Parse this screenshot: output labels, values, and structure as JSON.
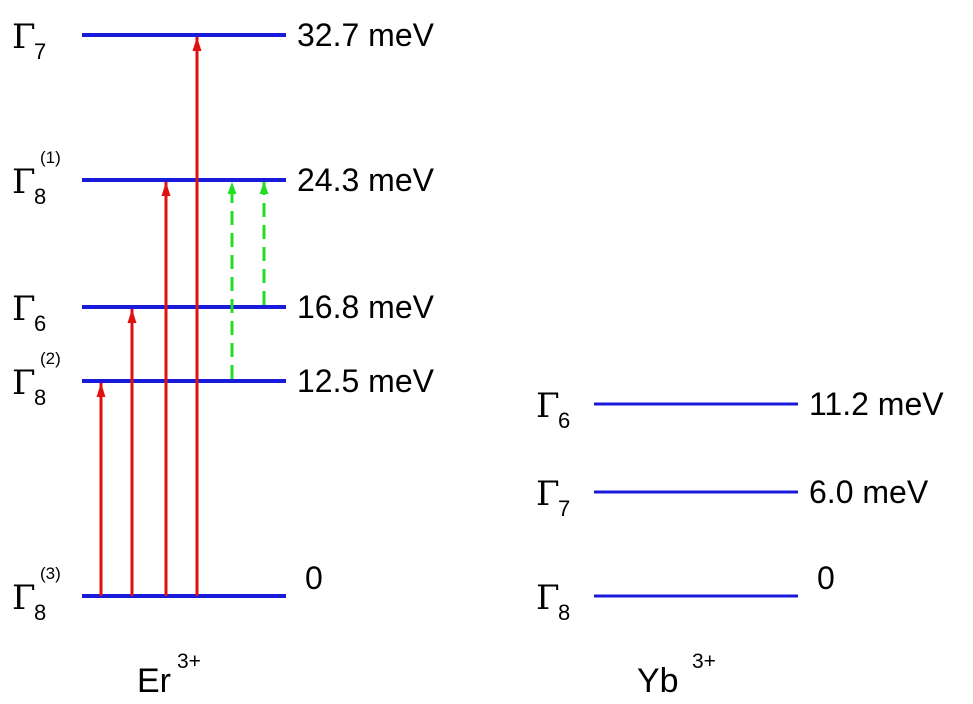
{
  "ions": [
    {
      "id": "er",
      "label": "Er",
      "charge": "3+",
      "line_color": "#1a1adb",
      "levels": [
        {
          "symbol": "Γ",
          "subscript": "7",
          "superscript": "",
          "energy_label": "32.7 meV",
          "energy": 32.7
        },
        {
          "symbol": "Γ",
          "subscript": "8",
          "superscript": "(1)",
          "energy_label": "24.3 meV",
          "energy": 24.3
        },
        {
          "symbol": "Γ",
          "subscript": "6",
          "superscript": "",
          "energy_label": "16.8 meV",
          "energy": 16.8
        },
        {
          "symbol": "Γ",
          "subscript": "8",
          "superscript": "(2)",
          "energy_label": "12.5 meV",
          "energy": 12.5
        },
        {
          "symbol": "Γ",
          "subscript": "8",
          "superscript": "(3)",
          "energy_label": "0",
          "energy": 0
        }
      ]
    },
    {
      "id": "yb",
      "label": "Yb",
      "charge": "3+",
      "line_color": "#1a1adb",
      "levels": [
        {
          "symbol": "Γ",
          "subscript": "6",
          "superscript": "",
          "energy_label": "11.2 meV",
          "energy": 11.2
        },
        {
          "symbol": "Γ",
          "subscript": "7",
          "superscript": "",
          "energy_label": "6.0 meV",
          "energy": 6.0
        },
        {
          "symbol": "Γ",
          "subscript": "8",
          "superscript": "",
          "energy_label": "0",
          "energy": 0
        }
      ]
    }
  ],
  "transitions": [
    {
      "from": 0,
      "to": 12.5,
      "style": "solid",
      "color": "#e01010"
    },
    {
      "from": 0,
      "to": 16.8,
      "style": "solid",
      "color": "#e01010"
    },
    {
      "from": 0,
      "to": 24.3,
      "style": "solid",
      "color": "#e01010"
    },
    {
      "from": 0,
      "to": 32.7,
      "style": "solid",
      "color": "#e01010"
    },
    {
      "from": 12.5,
      "to": 24.3,
      "style": "dashed",
      "color": "#22dd22"
    },
    {
      "from": 16.8,
      "to": 24.3,
      "style": "dashed",
      "color": "#22dd22"
    }
  ]
}
